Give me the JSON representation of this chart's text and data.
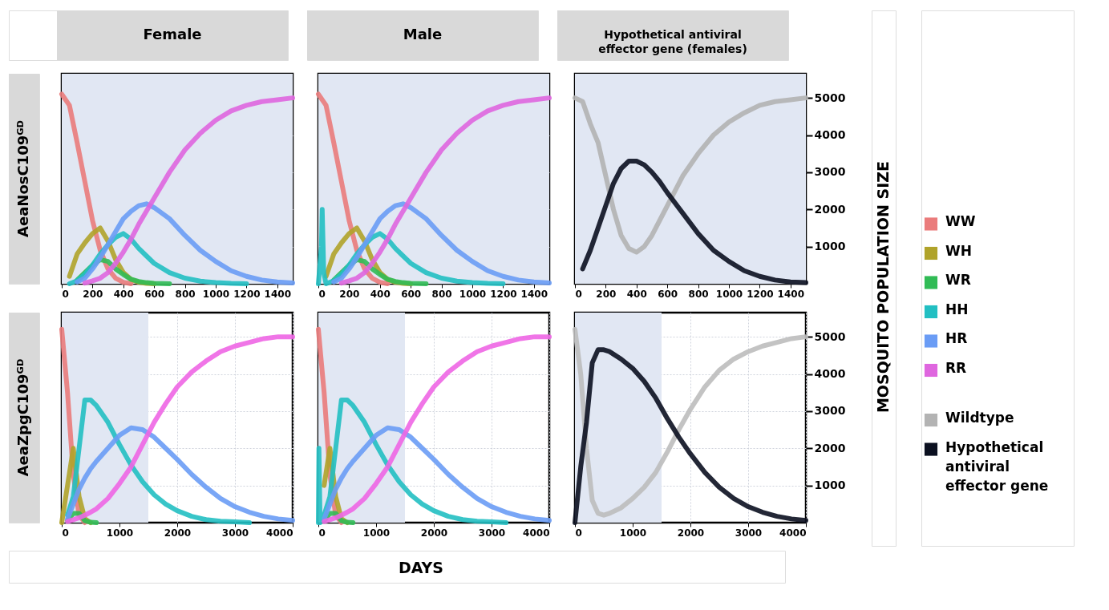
{
  "chart_data": [
    {
      "type": "line",
      "title": "Female",
      "ylabel": "AeaNosC109ᴳᴰ",
      "tick_labels": "x",
      "grid": true,
      "legend": "right",
      "x": [
        0,
        50,
        100,
        150,
        200,
        250,
        300,
        350,
        400,
        450,
        500,
        550,
        600,
        700,
        800,
        900,
        1000,
        1100,
        1200,
        1300,
        1400,
        1500
      ],
      "xlim": [
        0,
        1500
      ],
      "xticks": [
        0,
        200,
        400,
        600,
        800,
        1000,
        1200,
        1400
      ],
      "ylim": [
        0,
        5650
      ],
      "yticks": [
        1000,
        2000,
        3000,
        4000,
        5000
      ],
      "bands": [
        {
          "axis": "x",
          "from": 0,
          "to": 1500,
          "color": "#e1e7f3"
        }
      ],
      "series": [
        {
          "name": "WW",
          "color": "#ea7b7b",
          "values": [
            5100,
            4800,
            3800,
            2750,
            1700,
            900,
            400,
            150,
            40,
            0,
            null,
            null,
            null,
            null,
            null,
            null,
            null,
            null,
            null,
            null,
            null,
            null
          ]
        },
        {
          "name": "WH",
          "color": "#b0a32a",
          "values": [
            null,
            200,
            800,
            1100,
            1350,
            1500,
            1150,
            650,
            300,
            120,
            40,
            10,
            0,
            null,
            null,
            null,
            null,
            null,
            null,
            null,
            null,
            null
          ]
        },
        {
          "name": "WR",
          "color": "#30bb55",
          "values": [
            null,
            null,
            100,
            300,
            500,
            650,
            600,
            400,
            250,
            120,
            60,
            30,
            10,
            0,
            null,
            null,
            null,
            null,
            null,
            null,
            null,
            null
          ]
        },
        {
          "name": "HH",
          "color": "#22bfc2",
          "values": [
            null,
            0,
            80,
            250,
            500,
            800,
            1050,
            1250,
            1350,
            1200,
            950,
            750,
            550,
            300,
            150,
            70,
            30,
            10,
            0,
            null,
            null,
            null
          ]
        },
        {
          "name": "HR",
          "color": "#6a9cf5",
          "values": [
            null,
            null,
            50,
            150,
            400,
            700,
            1050,
            1400,
            1750,
            1950,
            2100,
            2150,
            2050,
            1750,
            1300,
            900,
            600,
            350,
            200,
            100,
            50,
            20
          ]
        },
        {
          "name": "RR",
          "color": "#df66df",
          "values": [
            null,
            null,
            null,
            20,
            80,
            150,
            300,
            550,
            850,
            1200,
            1600,
            1950,
            2300,
            3000,
            3600,
            4050,
            4400,
            4650,
            4800,
            4900,
            4950,
            5000
          ]
        }
      ]
    },
    {
      "type": "line",
      "title": "Male",
      "tick_labels": "x",
      "grid": true,
      "legend": "right",
      "x": [
        0,
        50,
        100,
        150,
        200,
        250,
        300,
        350,
        400,
        450,
        500,
        550,
        600,
        700,
        800,
        900,
        1000,
        1100,
        1200,
        1300,
        1400,
        1500
      ],
      "xlim": [
        0,
        1500
      ],
      "xticks": [
        0,
        200,
        400,
        600,
        800,
        1000,
        1200,
        1400
      ],
      "ylim": [
        0,
        5650
      ],
      "yticks": [
        1000,
        2000,
        3000,
        4000,
        5000
      ],
      "bands": [
        {
          "axis": "x",
          "from": 0,
          "to": 1500,
          "color": "#e1e7f3"
        }
      ],
      "series": [
        {
          "name": "WW",
          "color": "#ea7b7b",
          "values": [
            5100,
            4800,
            3800,
            2750,
            1700,
            900,
            400,
            150,
            40,
            0,
            null,
            null,
            null,
            null,
            null,
            null,
            null,
            null,
            null,
            null,
            null,
            null
          ]
        },
        {
          "name": "WH",
          "color": "#b0a32a",
          "values": [
            null,
            200,
            800,
            1100,
            1350,
            1500,
            1150,
            650,
            300,
            120,
            40,
            10,
            0,
            null,
            null,
            null,
            null,
            null,
            null,
            null,
            null,
            null
          ]
        },
        {
          "name": "WR",
          "color": "#30bb55",
          "values": [
            null,
            null,
            100,
            300,
            500,
            650,
            600,
            400,
            250,
            120,
            60,
            30,
            10,
            0,
            null,
            null,
            null,
            null,
            null,
            null,
            null,
            null
          ]
        },
        {
          "name": "HH",
          "color": "#22bfc2",
          "x": [
            0,
            20,
            25,
            35,
            50,
            100,
            150,
            200,
            250,
            300,
            350,
            400,
            450,
            500,
            550,
            600,
            700,
            800,
            900,
            1000,
            1100,
            1200
          ],
          "values": [
            0,
            1000,
            2000,
            300,
            0,
            80,
            250,
            500,
            800,
            1050,
            1250,
            1350,
            1200,
            950,
            750,
            550,
            300,
            150,
            70,
            30,
            10,
            0
          ]
        },
        {
          "name": "HR",
          "color": "#6a9cf5",
          "values": [
            null,
            null,
            50,
            150,
            400,
            700,
            1050,
            1400,
            1750,
            1950,
            2100,
            2150,
            2050,
            1750,
            1300,
            900,
            600,
            350,
            200,
            100,
            50,
            20
          ]
        },
        {
          "name": "RR",
          "color": "#df66df",
          "values": [
            null,
            null,
            null,
            20,
            80,
            150,
            300,
            550,
            850,
            1200,
            1600,
            1950,
            2300,
            3000,
            3600,
            4050,
            4400,
            4650,
            4800,
            4900,
            4950,
            5000
          ]
        }
      ]
    },
    {
      "type": "line",
      "title": "Hypothetical antiviral effector gene (females)",
      "ylabel": "MOSQUITO POPULATION SIZE",
      "grid": true,
      "legend": "right",
      "x": [
        0,
        50,
        100,
        150,
        200,
        250,
        300,
        350,
        400,
        450,
        500,
        550,
        600,
        700,
        800,
        900,
        1000,
        1100,
        1200,
        1300,
        1400,
        1500
      ],
      "xlim": [
        0,
        1500
      ],
      "xticks": [
        0,
        200,
        400,
        600,
        800,
        1000,
        1200,
        1400
      ],
      "ylim": [
        0,
        5650
      ],
      "yticks": [
        1000,
        2000,
        3000,
        4000,
        5000
      ],
      "bands": [
        {
          "axis": "x",
          "from": 0,
          "to": 1500,
          "color": "#e1e7f3"
        }
      ],
      "series": [
        {
          "name": "Wildtype",
          "color": "#b3b3b3",
          "values": [
            5000,
            4900,
            4300,
            3800,
            2900,
            2000,
            1300,
            950,
            850,
            1000,
            1300,
            1700,
            2100,
            2900,
            3500,
            4000,
            4350,
            4600,
            4800,
            4900,
            4950,
            5000
          ]
        },
        {
          "name": "Hypothetical antiviral effector gene",
          "color": "#0b1020",
          "values": [
            null,
            400,
            900,
            1500,
            2100,
            2700,
            3100,
            3300,
            3300,
            3200,
            3000,
            2750,
            2450,
            1900,
            1350,
            900,
            600,
            350,
            200,
            100,
            50,
            30
          ]
        }
      ]
    },
    {
      "type": "line",
      "ylabel": "AeaZpgC109ᴳᴰ",
      "tick_labels": "x",
      "grid": true,
      "legend": "right",
      "x": [
        0,
        100,
        200,
        300,
        400,
        500,
        600,
        800,
        1000,
        1200,
        1400,
        1600,
        1800,
        2000,
        2250,
        2500,
        2750,
        3000,
        3250,
        3500,
        3750,
        4000
      ],
      "xlim": [
        0,
        4000
      ],
      "xticks": [
        0,
        1000,
        2000,
        3000,
        4000
      ],
      "ylim": [
        0,
        5650
      ],
      "yticks": [
        1000,
        2000,
        3000,
        4000,
        5000
      ],
      "bands": [
        {
          "axis": "x",
          "from": 0,
          "to": 1500,
          "color": "#e1e7f3"
        }
      ],
      "series": [
        {
          "name": "WW",
          "color": "#ea7b7b",
          "values": [
            5200,
            3500,
            1300,
            200,
            0,
            null,
            null,
            null,
            null,
            null,
            null,
            null,
            null,
            null,
            null,
            null,
            null,
            null,
            null,
            null,
            null,
            null
          ]
        },
        {
          "name": "WH",
          "color": "#b0a32a",
          "values": [
            0,
            1000,
            2000,
            700,
            100,
            0,
            null,
            null,
            null,
            null,
            null,
            null,
            null,
            null,
            null,
            null,
            null,
            null,
            null,
            null,
            null,
            null
          ]
        },
        {
          "name": "WR",
          "color": "#30bb55",
          "values": [
            null,
            50,
            250,
            250,
            50,
            10,
            0,
            null,
            null,
            null,
            null,
            null,
            null,
            null,
            null,
            null,
            null,
            null,
            null,
            null,
            null,
            null
          ]
        },
        {
          "name": "HH",
          "color": "#22bfc2",
          "values": [
            null,
            200,
            700,
            2000,
            3300,
            3300,
            3150,
            2700,
            2100,
            1550,
            1100,
            750,
            500,
            320,
            170,
            80,
            40,
            20,
            0,
            null,
            null,
            null
          ]
        },
        {
          "name": "HR",
          "color": "#6a9cf5",
          "values": [
            null,
            100,
            500,
            900,
            1200,
            1450,
            1650,
            2000,
            2350,
            2550,
            2500,
            2300,
            2000,
            1700,
            1300,
            950,
            650,
            430,
            280,
            170,
            100,
            60
          ]
        },
        {
          "name": "RR",
          "color": "#ee66e4",
          "values": [
            null,
            30,
            80,
            130,
            200,
            280,
            370,
            650,
            1050,
            1500,
            2100,
            2700,
            3200,
            3650,
            4050,
            4350,
            4600,
            4750,
            4850,
            4950,
            5000,
            5000
          ]
        }
      ]
    },
    {
      "type": "line",
      "xlabel": "DAYS",
      "tick_labels": "x",
      "grid": true,
      "legend": "right",
      "x": [
        0,
        100,
        200,
        300,
        400,
        500,
        600,
        800,
        1000,
        1200,
        1400,
        1600,
        1800,
        2000,
        2250,
        2500,
        2750,
        3000,
        3250,
        3500,
        3750,
        4000
      ],
      "xlim": [
        0,
        4000
      ],
      "xticks": [
        0,
        1000,
        2000,
        3000,
        4000
      ],
      "ylim": [
        0,
        5650
      ],
      "yticks": [
        1000,
        2000,
        3000,
        4000,
        5000
      ],
      "bands": [
        {
          "axis": "x",
          "from": 0,
          "to": 1500,
          "color": "#e1e7f3"
        }
      ],
      "series": [
        {
          "name": "WW",
          "color": "#ea7b7b",
          "values": [
            5200,
            3500,
            1300,
            200,
            0,
            null,
            null,
            null,
            null,
            null,
            null,
            null,
            null,
            null,
            null,
            null,
            null,
            null,
            null,
            null,
            null,
            null
          ]
        },
        {
          "name": "WH",
          "color": "#b0a32a",
          "values": [
            null,
            1000,
            2000,
            700,
            100,
            0,
            null,
            null,
            null,
            null,
            null,
            null,
            null,
            null,
            null,
            null,
            null,
            null,
            null,
            null,
            null,
            null
          ]
        },
        {
          "name": "WR",
          "color": "#30bb55",
          "values": [
            null,
            50,
            250,
            250,
            50,
            10,
            0,
            null,
            null,
            null,
            null,
            null,
            null,
            null,
            null,
            null,
            null,
            null,
            null,
            null,
            null,
            null
          ]
        },
        {
          "name": "HH",
          "color": "#22bfc2",
          "x": [
            0,
            10,
            30,
            100,
            200,
            300,
            400,
            500,
            600,
            800,
            1000,
            1200,
            1400,
            1600,
            1800,
            2000,
            2250,
            2500,
            2750,
            3000,
            3250
          ],
          "values": [
            0,
            2000,
            0,
            200,
            700,
            2000,
            3300,
            3300,
            3150,
            2700,
            2100,
            1550,
            1100,
            750,
            500,
            320,
            170,
            80,
            40,
            20,
            0
          ]
        },
        {
          "name": "HR",
          "color": "#6a9cf5",
          "values": [
            null,
            100,
            500,
            900,
            1200,
            1450,
            1650,
            2000,
            2350,
            2550,
            2500,
            2300,
            2000,
            1700,
            1300,
            950,
            650,
            430,
            280,
            170,
            100,
            60
          ]
        },
        {
          "name": "RR",
          "color": "#ee66e4",
          "values": [
            null,
            30,
            80,
            130,
            200,
            280,
            370,
            650,
            1050,
            1500,
            2100,
            2700,
            3200,
            3650,
            4050,
            4350,
            4600,
            4750,
            4850,
            4950,
            5000,
            5000
          ]
        }
      ]
    },
    {
      "type": "line",
      "grid": true,
      "legend": "right",
      "x": [
        0,
        100,
        200,
        300,
        400,
        500,
        600,
        800,
        1000,
        1200,
        1400,
        1600,
        1800,
        2000,
        2250,
        2500,
        2750,
        3000,
        3250,
        3500,
        3750,
        4000
      ],
      "xlim": [
        0,
        4000
      ],
      "xticks": [
        0,
        1000,
        2000,
        3000,
        4000
      ],
      "ylim": [
        0,
        5650
      ],
      "yticks": [
        1000,
        2000,
        3000,
        4000,
        5000
      ],
      "bands": [
        {
          "axis": "x",
          "from": 0,
          "to": 1500,
          "color": "#e1e7f3"
        }
      ],
      "series": [
        {
          "name": "Wildtype",
          "color": "#bcbcbc",
          "values": [
            5200,
            4000,
            2000,
            600,
            250,
            200,
            250,
            400,
            650,
            950,
            1350,
            1900,
            2500,
            3050,
            3650,
            4100,
            4400,
            4600,
            4750,
            4850,
            4950,
            5000
          ]
        },
        {
          "name": "Hypothetical antiviral effector gene",
          "color": "#0b1020",
          "values": [
            0,
            1500,
            2700,
            4300,
            4650,
            4650,
            4600,
            4400,
            4150,
            3800,
            3350,
            2800,
            2300,
            1850,
            1350,
            950,
            650,
            430,
            280,
            170,
            100,
            60
          ]
        }
      ]
    }
  ]
}
